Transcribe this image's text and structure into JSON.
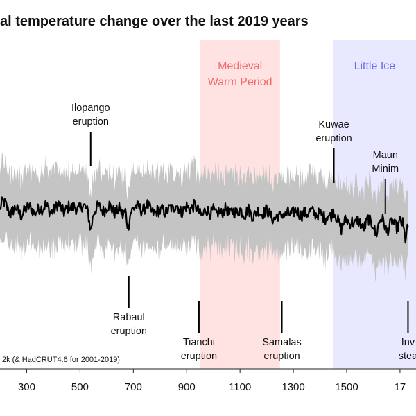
{
  "chart_data": {
    "type": "line",
    "title": "al temperature change over the last 2019 years",
    "xlim": [
      200,
      1760
    ],
    "x_ticks": [
      300,
      500,
      700,
      900,
      1100,
      1300,
      1500,
      1700
    ],
    "tick_labels": [
      "300",
      "500",
      "700",
      "900",
      "1100",
      "1300",
      "1500",
      "17"
    ],
    "bands": [
      {
        "label_lines": [
          "Medieval",
          "Warm Period"
        ],
        "start": 950,
        "end": 1250,
        "color": "#ffe3e3",
        "text_color": "#f46a6a"
      },
      {
        "label_lines": [
          "Little Ice"
        ],
        "start": 1450,
        "end": 1760,
        "color": "#e8e8ff",
        "text_color": "#6a6af4"
      }
    ],
    "annotations": [
      {
        "lines": [
          "Ilopango",
          "eruption"
        ],
        "year": 540,
        "side": "top"
      },
      {
        "lines": [
          "Rabaul",
          "eruption"
        ],
        "year": 683,
        "side": "bottom"
      },
      {
        "lines": [
          "Tianchi",
          "eruption"
        ],
        "year": 946,
        "side": "bottom"
      },
      {
        "lines": [
          "Samalas",
          "eruption"
        ],
        "year": 1257,
        "side": "bottom"
      },
      {
        "lines": [
          "Kuwae",
          "eruption"
        ],
        "year": 1452,
        "side": "top"
      },
      {
        "lines": [
          "Maun",
          "Minim"
        ],
        "year": 1645,
        "side": "top"
      },
      {
        "lines": [
          "Inv",
          "stea"
        ],
        "year": 1730,
        "side": "bottom"
      }
    ],
    "source": "2k (& HadCRUT4.6 for 2001-2019)",
    "series": [
      {
        "x_start": 200,
        "x_step": 10,
        "y_median": [
          0.05,
          0.18,
          0.14,
          0.02,
          -0.05,
          0.03,
          0.08,
          -0.02,
          -0.08,
          0.0,
          0.06,
          0.09,
          0.03,
          -0.04,
          0.02,
          0.07,
          0.04,
          0.12,
          0.06,
          -0.03,
          0.01,
          0.08,
          0.15,
          0.05,
          -0.02,
          0.04,
          0.1,
          0.06,
          0.09,
          0.02,
          0.05,
          0.12,
          0.08,
          -0.02,
          -0.35,
          -0.05,
          0.06,
          0.1,
          0.03,
          0.0,
          0.07,
          0.12,
          0.04,
          -0.03,
          0.02,
          0.06,
          -0.08,
          0.01,
          -0.3,
          -0.02,
          0.05,
          0.1,
          0.08,
          0.02,
          0.03,
          0.14,
          0.06,
          -0.02,
          -0.04,
          0.02,
          0.0,
          0.04,
          -0.03,
          0.03,
          0.08,
          0.02,
          0.15,
          0.06,
          -0.02,
          0.04,
          0.1,
          0.04,
          0.06,
          0.12,
          0.05,
          -0.05,
          -0.08,
          0.04,
          0.01,
          -0.04,
          0.03,
          -0.06,
          0.0,
          -0.04,
          0.02,
          0.06,
          -0.08,
          0.02,
          -0.01,
          -0.03,
          0.04,
          -0.02,
          -0.06,
          0.06,
          -0.04,
          -0.1,
          -0.02,
          0.02,
          -0.05,
          -0.02,
          0.04,
          -0.04,
          -0.12,
          -0.15,
          -0.06,
          -0.1,
          -0.04,
          -0.08,
          -0.02,
          -0.06,
          -0.02,
          0.03,
          -0.03,
          -0.08,
          -0.02,
          -0.05,
          0.0,
          0.01,
          -0.04,
          -0.06,
          -0.03,
          -0.08,
          -0.12,
          -0.06,
          -0.1,
          0.02,
          -0.08,
          -0.2,
          -0.32,
          -0.18,
          -0.14,
          -0.22,
          -0.18,
          -0.24,
          -0.15,
          -0.2,
          -0.3,
          -0.26,
          -0.12,
          -0.2,
          -0.24,
          -0.45,
          -0.22,
          -0.1,
          -0.2,
          -0.38,
          -0.28,
          -0.16,
          -0.25,
          -0.3,
          -0.18,
          -0.22,
          -0.5,
          -0.28
        ]
      }
    ],
    "band_upper_offset": 0.5,
    "band_lower_offset": 0.5,
    "ylim": [
      -1.35,
      1.35
    ]
  }
}
